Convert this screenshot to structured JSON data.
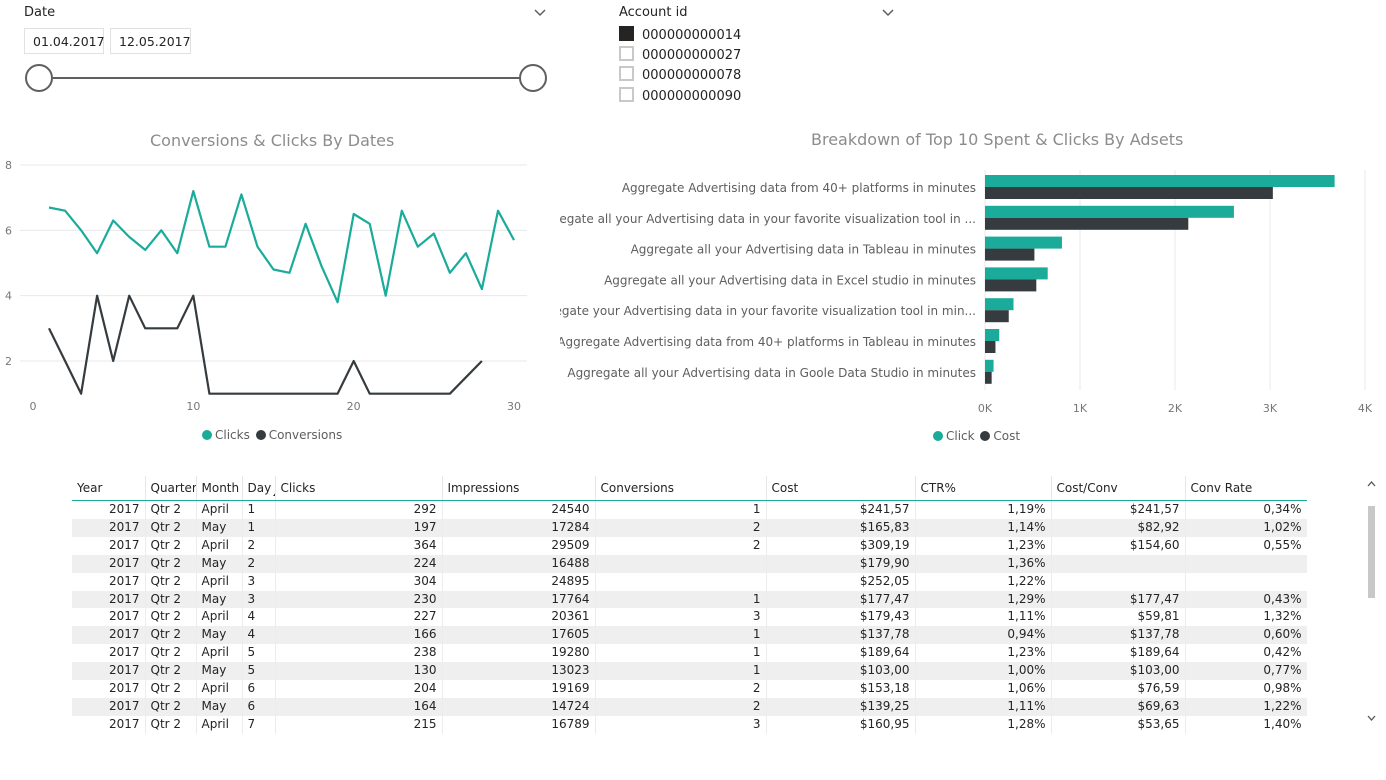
{
  "date_slicer": {
    "title": "Date",
    "start": "01.04.2017",
    "end": "12.05.2017"
  },
  "account_slicer": {
    "title": "Account id",
    "items": [
      {
        "label": "000000000014",
        "checked": true
      },
      {
        "label": "000000000027",
        "checked": false
      },
      {
        "label": "000000000078",
        "checked": false
      },
      {
        "label": "000000000090",
        "checked": false
      }
    ]
  },
  "colors": {
    "teal": "#1aab9b",
    "dark": "#353b3e"
  },
  "line_chart": {
    "legend": [
      {
        "label": "Clicks"
      },
      {
        "label": "Conversions"
      }
    ]
  },
  "bar_chart": {
    "legend": [
      {
        "label": "Click"
      },
      {
        "label": "Cost"
      }
    ]
  },
  "chart_data": [
    {
      "type": "line",
      "title": "Conversions & Clicks By Dates",
      "xlim": [
        0,
        30
      ],
      "ylim": [
        1,
        8
      ],
      "x_ticks": [
        "0",
        "10",
        "20",
        "30"
      ],
      "y_ticks": [
        "2",
        "4",
        "6",
        "8"
      ],
      "grid": true,
      "legend": "bottom",
      "series": [
        {
          "name": "Clicks",
          "x": [
            1,
            2,
            3,
            4,
            5,
            6,
            7,
            8,
            9,
            10,
            11,
            12,
            13,
            14,
            15,
            16,
            17,
            18,
            19,
            20,
            21,
            22,
            23,
            24,
            25,
            26,
            27,
            28,
            29,
            30
          ],
          "y": [
            6.7,
            6.6,
            6.0,
            5.3,
            6.3,
            5.8,
            5.4,
            6.0,
            5.3,
            7.2,
            5.5,
            5.5,
            7.1,
            5.5,
            4.8,
            4.7,
            6.2,
            4.9,
            3.8,
            6.5,
            6.2,
            4.0,
            6.6,
            5.5,
            5.9,
            4.7,
            5.3,
            4.2,
            6.6,
            5.7
          ]
        },
        {
          "name": "Conversions",
          "x": [
            1,
            2,
            3,
            4,
            5,
            6,
            7,
            8,
            9,
            10,
            11,
            12,
            13,
            14,
            15,
            16,
            17,
            18,
            19,
            20,
            21,
            22,
            23,
            24,
            25,
            26,
            27,
            28
          ],
          "y": [
            3,
            2,
            1,
            4,
            2,
            4,
            3,
            3,
            3,
            4,
            1,
            1,
            1,
            1,
            1,
            1,
            1,
            1,
            1,
            2,
            1,
            1,
            1,
            1,
            1,
            1,
            1.5,
            2
          ]
        }
      ]
    },
    {
      "type": "bar",
      "orientation": "horizontal",
      "title": "Breakdown of Top 10 Spent & Clicks By Adsets",
      "categories": [
        "Aggregate Advertising data from 40+ platforms in minutes",
        "Aggregate all your Advertising data in your favorite visualization tool in ...",
        "Aggregate all your Advertising data in Tableau in minutes",
        "Aggregate all your Advertising data in Excel studio in minutes",
        "Aggregate your Advertising data in your favorite visualization tool in min...",
        "Aggregate Advertising data from 40+ platforms in Tableau in minutes",
        "Aggregate all your Advertising data in Goole Data Studio in minutes"
      ],
      "xlim": [
        0,
        4000
      ],
      "x_ticks": [
        "0K",
        "1K",
        "2K",
        "3K",
        "4K"
      ],
      "legend": "bottom",
      "series": [
        {
          "name": "Click",
          "values": [
            3680,
            2620,
            810,
            660,
            300,
            150,
            90
          ]
        },
        {
          "name": "Cost",
          "values": [
            3030,
            2140,
            520,
            540,
            250,
            110,
            70
          ]
        }
      ]
    }
  ],
  "table": {
    "headers": [
      "Year",
      "Quarter",
      "Month",
      "Day",
      "Clicks",
      "Impressions",
      "Conversions",
      "Cost",
      "CTR%",
      "Cost/Conv",
      "Conv Rate"
    ],
    "rows": [
      [
        "2017",
        "Qtr 2",
        "April",
        "1",
        "292",
        "24540",
        "1",
        "$241,57",
        "1,19%",
        "$241,57",
        "0,34%"
      ],
      [
        "2017",
        "Qtr 2",
        "May",
        "1",
        "197",
        "17284",
        "2",
        "$165,83",
        "1,14%",
        "$82,92",
        "1,02%"
      ],
      [
        "2017",
        "Qtr 2",
        "April",
        "2",
        "364",
        "29509",
        "2",
        "$309,19",
        "1,23%",
        "$154,60",
        "0,55%"
      ],
      [
        "2017",
        "Qtr 2",
        "May",
        "2",
        "224",
        "16488",
        "",
        "$179,90",
        "1,36%",
        "",
        ""
      ],
      [
        "2017",
        "Qtr 2",
        "April",
        "3",
        "304",
        "24895",
        "",
        "$252,05",
        "1,22%",
        "",
        ""
      ],
      [
        "2017",
        "Qtr 2",
        "May",
        "3",
        "230",
        "17764",
        "1",
        "$177,47",
        "1,29%",
        "$177,47",
        "0,43%"
      ],
      [
        "2017",
        "Qtr 2",
        "April",
        "4",
        "227",
        "20361",
        "3",
        "$179,43",
        "1,11%",
        "$59,81",
        "1,32%"
      ],
      [
        "2017",
        "Qtr 2",
        "May",
        "4",
        "166",
        "17605",
        "1",
        "$137,78",
        "0,94%",
        "$137,78",
        "0,60%"
      ],
      [
        "2017",
        "Qtr 2",
        "April",
        "5",
        "238",
        "19280",
        "1",
        "$189,64",
        "1,23%",
        "$189,64",
        "0,42%"
      ],
      [
        "2017",
        "Qtr 2",
        "May",
        "5",
        "130",
        "13023",
        "1",
        "$103,00",
        "1,00%",
        "$103,00",
        "0,77%"
      ],
      [
        "2017",
        "Qtr 2",
        "April",
        "6",
        "204",
        "19169",
        "2",
        "$153,18",
        "1,06%",
        "$76,59",
        "0,98%"
      ],
      [
        "2017",
        "Qtr 2",
        "May",
        "6",
        "164",
        "14724",
        "2",
        "$139,25",
        "1,11%",
        "$69,63",
        "1,22%"
      ],
      [
        "2017",
        "Qtr 2",
        "April",
        "7",
        "215",
        "16789",
        "3",
        "$160,95",
        "1,28%",
        "$53,65",
        "1,40%"
      ]
    ]
  }
}
